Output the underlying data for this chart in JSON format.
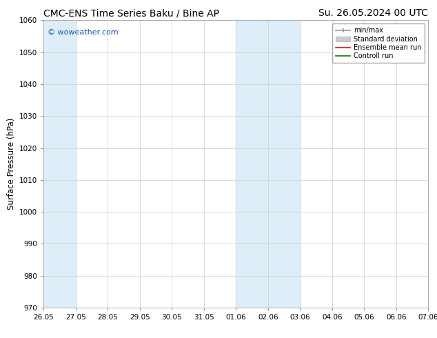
{
  "title_left": "CMC-ENS Time Series Baku / Bine AP",
  "title_right": "Su. 26.05.2024 00 UTC",
  "ylabel": "Surface Pressure (hPa)",
  "ylim": [
    970,
    1060
  ],
  "yticks": [
    970,
    980,
    990,
    1000,
    1010,
    1020,
    1030,
    1040,
    1050,
    1060
  ],
  "xtick_labels": [
    "26.05",
    "27.05",
    "28.05",
    "29.05",
    "30.05",
    "31.05",
    "01.06",
    "02.06",
    "03.06",
    "04.06",
    "05.06",
    "06.06",
    "07.06"
  ],
  "xtick_positions": [
    0,
    1,
    2,
    3,
    4,
    5,
    6,
    7,
    8,
    9,
    10,
    11,
    12
  ],
  "shaded_bands": [
    {
      "x_start": 0,
      "x_end": 1,
      "color": "#ddeef8"
    },
    {
      "x_start": 6,
      "x_end": 8,
      "color": "#ddeef8"
    }
  ],
  "watermark_text": "© woweather.com",
  "watermark_color": "#1155bb",
  "legend_entries": [
    {
      "label": "min/max",
      "color": "#999999",
      "lw": 1.5
    },
    {
      "label": "Standard deviation",
      "color": "#cccccc",
      "lw": 6
    },
    {
      "label": "Ensemble mean run",
      "color": "#ff0000",
      "lw": 1.5
    },
    {
      "label": "Controll run",
      "color": "#008000",
      "lw": 1.5
    }
  ],
  "bg_color": "#ffffff",
  "grid_color": "#cccccc",
  "title_fontsize": 10,
  "tick_fontsize": 7.5,
  "label_fontsize": 8.5,
  "legend_fontsize": 7,
  "watermark_fontsize": 8
}
